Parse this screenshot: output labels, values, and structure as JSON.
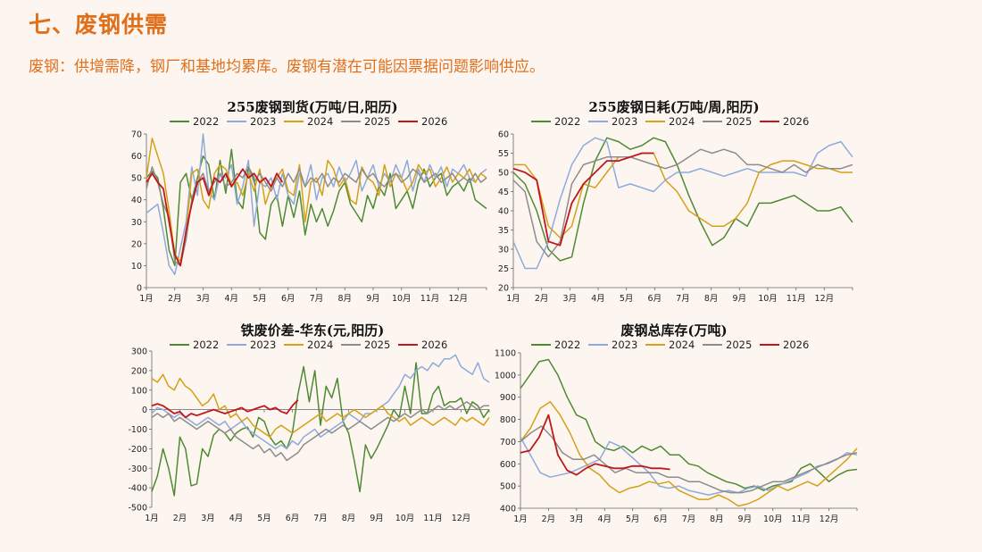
{
  "page": {
    "title": "七、废钢供需",
    "subtitle": "废钢：供增需降，钢厂和基地均累库。废钢有潜在可能因票据问题影响供应。"
  },
  "colors": {
    "accent": "#e06f1c",
    "s2022": "#4e8a33",
    "s2023": "#8eaadb",
    "s2024": "#d4a017",
    "s2025": "#8c8c8c",
    "s2026": "#c0171c"
  },
  "chart_data": [
    {
      "type": "line",
      "title": "255废钢到货(万吨/日,阳历)",
      "x_tick_labels": [
        "1月",
        "2月",
        "3月",
        "4月",
        "5月",
        "6月",
        "7月",
        "8月",
        "9月",
        "10月",
        "11月",
        "12月"
      ],
      "ylim": [
        0,
        70
      ],
      "y_ticks": [
        0,
        10,
        20,
        30,
        40,
        50,
        60,
        70
      ],
      "legend": "top",
      "series": [
        {
          "name": "2022",
          "values": [
            50,
            53,
            50,
            36,
            17,
            10,
            48,
            52,
            40,
            50,
            60,
            56,
            40,
            58,
            43,
            63,
            40,
            36,
            55,
            50,
            25,
            22,
            38,
            42,
            28,
            42,
            32,
            44,
            24,
            38,
            30,
            36,
            28,
            35,
            44,
            48,
            38,
            34,
            30,
            42,
            36,
            46,
            42,
            52,
            36,
            40,
            44,
            36,
            48,
            54,
            46,
            50,
            52,
            42,
            46,
            48,
            44,
            50,
            40,
            38,
            36
          ]
        },
        {
          "name": "2023",
          "values": [
            34,
            36,
            38,
            25,
            10,
            6,
            18,
            30,
            55,
            42,
            70,
            44,
            40,
            52,
            50,
            56,
            38,
            46,
            58,
            28,
            48,
            46,
            50,
            40,
            52,
            42,
            38,
            52,
            46,
            56,
            40,
            50,
            52,
            46,
            55,
            48,
            52,
            58,
            44,
            50,
            56,
            46,
            52,
            48,
            56,
            50,
            58,
            44,
            54,
            48,
            56,
            50,
            55,
            46,
            54,
            52,
            56,
            50,
            48,
            52,
            54
          ]
        },
        {
          "name": "2024",
          "values": [
            50,
            68,
            60,
            52,
            35,
            15,
            12,
            25,
            52,
            54,
            40,
            36,
            52,
            56,
            54,
            47,
            48,
            42,
            52,
            44,
            54,
            38,
            46,
            50,
            54,
            44,
            42,
            56,
            30,
            48,
            50,
            42,
            58,
            54,
            46,
            50,
            40,
            38,
            55,
            50,
            48,
            42,
            56,
            46,
            52,
            50,
            44,
            48,
            56,
            52,
            54,
            46,
            50,
            55,
            48,
            52,
            50,
            54,
            48,
            52,
            50
          ]
        },
        {
          "name": "2025",
          "values": [
            45,
            55,
            48,
            38,
            32,
            12,
            10,
            22,
            40,
            48,
            52,
            44,
            48,
            52,
            46,
            48,
            52,
            50,
            55,
            48,
            52,
            48,
            44,
            50,
            46,
            52,
            48,
            54,
            46,
            50,
            48,
            52,
            46,
            50,
            48,
            52,
            50,
            48,
            54,
            50,
            52,
            48,
            46,
            50,
            52,
            48,
            50,
            54,
            52,
            48,
            50,
            52,
            48,
            50,
            52,
            48,
            50,
            48,
            52,
            48,
            50
          ]
        },
        {
          "name": "2026",
          "values": [
            48,
            52,
            48,
            45,
            30,
            15,
            10,
            26,
            38,
            48,
            50,
            42,
            50,
            48,
            52,
            46,
            50,
            54,
            50,
            52,
            48,
            50,
            46,
            52,
            48
          ]
        }
      ]
    },
    {
      "type": "line",
      "title": "255废钢日耗(万吨/周,阳历)",
      "x_tick_labels": [
        "1月",
        "2月",
        "3月",
        "4月",
        "5月",
        "6月",
        "7月",
        "8月",
        "9月",
        "10月",
        "11月",
        "12月"
      ],
      "ylim": [
        20,
        60
      ],
      "y_ticks": [
        20,
        25,
        30,
        35,
        40,
        45,
        50,
        55,
        60
      ],
      "legend": "top",
      "series": [
        {
          "name": "2022",
          "values": [
            50,
            47,
            40,
            30,
            27,
            28,
            42,
            53,
            59,
            58,
            56,
            57,
            59,
            58,
            52,
            44,
            37,
            31,
            33,
            38,
            36,
            42,
            42,
            43,
            44,
            42,
            40,
            40,
            41,
            37
          ]
        },
        {
          "name": "2023",
          "values": [
            32,
            25,
            25,
            32,
            43,
            52,
            57,
            59,
            58,
            46,
            47,
            46,
            45,
            48,
            50,
            50,
            51,
            50,
            49,
            50,
            51,
            50,
            50,
            50,
            50,
            49,
            55,
            57,
            58,
            54
          ]
        },
        {
          "name": "2024",
          "values": [
            52,
            52,
            48,
            36,
            33,
            36,
            47,
            46,
            50,
            54,
            54,
            55,
            55,
            48,
            45,
            40,
            38,
            36,
            36,
            38,
            42,
            50,
            52,
            53,
            53,
            52,
            51,
            51,
            50,
            50
          ]
        },
        {
          "name": "2025",
          "values": [
            48,
            45,
            32,
            28,
            32,
            47,
            52,
            53,
            54,
            54,
            54,
            53,
            52,
            51,
            52,
            54,
            56,
            55,
            56,
            55,
            52,
            52,
            51,
            50,
            52,
            50,
            52,
            51,
            51,
            52
          ]
        },
        {
          "name": "2026",
          "values": [
            51,
            50,
            48,
            32,
            31,
            42,
            47,
            50,
            53,
            53,
            54,
            55,
            55
          ]
        }
      ]
    },
    {
      "type": "line",
      "title": "铁废价差-华东(元,阳历)",
      "x_tick_labels": [
        "1月",
        "2月",
        "3月",
        "4月",
        "5月",
        "6月",
        "7月",
        "8月",
        "9月",
        "10月",
        "11月",
        "12月"
      ],
      "ylim": [
        -500,
        300
      ],
      "y_ticks": [
        -500,
        -400,
        -300,
        -200,
        -100,
        0,
        100,
        200,
        300
      ],
      "legend": "top",
      "series": [
        {
          "name": "2022",
          "values": [
            -420,
            -340,
            -200,
            -300,
            -440,
            -140,
            -200,
            -390,
            -380,
            -200,
            -240,
            -130,
            -100,
            -120,
            -160,
            -120,
            -100,
            -90,
            -140,
            -40,
            -60,
            -140,
            -180,
            -160,
            -200,
            -120,
            80,
            220,
            40,
            200,
            -80,
            120,
            60,
            160,
            -60,
            -120,
            -260,
            -420,
            -180,
            -250,
            -200,
            -140,
            -80,
            0,
            -40,
            120,
            -20,
            240,
            -20,
            -20,
            80,
            120,
            20,
            40,
            40,
            60,
            -20,
            40,
            20,
            -40,
            0
          ]
        },
        {
          "name": "2023",
          "values": [
            -20,
            10,
            0,
            -20,
            -40,
            -20,
            -40,
            -60,
            -80,
            -60,
            -40,
            -60,
            -80,
            -60,
            -100,
            -80,
            -60,
            -100,
            -120,
            -140,
            -160,
            -180,
            -200,
            -180,
            -200,
            -160,
            -180,
            -140,
            -120,
            -100,
            -140,
            -120,
            -100,
            -80,
            -60,
            -20,
            -40,
            -60,
            -20,
            -20,
            0,
            20,
            40,
            80,
            120,
            180,
            160,
            200,
            220,
            200,
            240,
            220,
            260,
            260,
            280,
            220,
            200,
            180,
            240,
            160,
            140
          ]
        },
        {
          "name": "2024",
          "values": [
            160,
            140,
            180,
            120,
            100,
            160,
            120,
            100,
            60,
            20,
            40,
            80,
            0,
            20,
            -40,
            -20,
            -60,
            -40,
            -80,
            -100,
            -120,
            -140,
            -100,
            -80,
            -100,
            -120,
            -100,
            -80,
            -60,
            -40,
            -20,
            -60,
            -40,
            -20,
            -40,
            -20,
            0,
            -20,
            -40,
            -20,
            0,
            20,
            -20,
            -40,
            -60,
            -40,
            -80,
            -60,
            -40,
            -60,
            -80,
            -60,
            -40,
            -60,
            -80,
            -40,
            -60,
            -40,
            -60,
            -80,
            -40
          ]
        },
        {
          "name": "2025",
          "values": [
            -40,
            -20,
            -40,
            -20,
            -60,
            -40,
            -60,
            -80,
            -100,
            -80,
            -60,
            -80,
            -100,
            -120,
            -100,
            -140,
            -160,
            -180,
            -200,
            -180,
            -220,
            -200,
            -240,
            -220,
            -260,
            -240,
            -220,
            -180,
            -160,
            -140,
            -120,
            -100,
            -120,
            -100,
            -80,
            -100,
            -80,
            -60,
            -80,
            -100,
            -80,
            -60,
            -40,
            -60,
            -40,
            -20,
            -40,
            -20,
            0,
            -20,
            0,
            20,
            0,
            20,
            0,
            20,
            40,
            20,
            0,
            20,
            20
          ]
        },
        {
          "name": "2026",
          "values": [
            20,
            30,
            20,
            0,
            -20,
            -10,
            -40,
            -20,
            -30,
            -20,
            -10,
            0,
            -10,
            -20,
            -10,
            0,
            10,
            -10,
            0,
            10,
            20,
            0,
            10,
            -10,
            -20,
            20,
            50
          ]
        }
      ]
    },
    {
      "type": "line",
      "title": "废钢总库存(万吨)",
      "x_tick_labels": [
        "1月",
        "2月",
        "3月",
        "4月",
        "5月",
        "6月",
        "7月",
        "8月",
        "9月",
        "10月",
        "11月",
        "12月"
      ],
      "ylim": [
        400,
        1100
      ],
      "y_ticks": [
        400,
        500,
        600,
        700,
        800,
        900,
        1000,
        1100
      ],
      "legend": "top",
      "series": [
        {
          "name": "2022",
          "values": [
            940,
            1000,
            1060,
            1070,
            1000,
            900,
            820,
            800,
            700,
            670,
            660,
            680,
            650,
            680,
            660,
            680,
            640,
            640,
            600,
            590,
            560,
            540,
            520,
            510,
            490,
            500,
            480,
            500,
            510,
            520,
            580,
            600,
            560,
            520,
            550,
            570,
            575
          ]
        },
        {
          "name": "2023",
          "values": [
            720,
            640,
            560,
            540,
            550,
            560,
            580,
            600,
            620,
            700,
            680,
            640,
            600,
            560,
            500,
            490,
            500,
            480,
            470,
            460,
            470,
            480,
            470,
            490,
            500,
            480,
            500,
            520,
            540,
            560,
            590,
            600,
            620,
            650,
            640
          ]
        },
        {
          "name": "2024",
          "values": [
            700,
            760,
            850,
            880,
            820,
            740,
            640,
            580,
            550,
            500,
            470,
            490,
            500,
            520,
            510,
            520,
            480,
            460,
            440,
            440,
            460,
            440,
            410,
            420,
            440,
            470,
            500,
            480,
            500,
            520,
            500,
            540,
            580,
            620,
            670
          ]
        },
        {
          "name": "2025",
          "values": [
            700,
            740,
            770,
            720,
            650,
            620,
            620,
            640,
            600,
            560,
            580,
            560,
            560,
            560,
            540,
            540,
            520,
            520,
            500,
            480,
            470,
            470,
            480,
            500,
            520,
            520,
            540,
            560,
            580,
            600,
            620,
            640,
            650
          ]
        },
        {
          "name": "2026",
          "values": [
            650,
            660,
            720,
            820,
            640,
            570,
            550,
            580,
            600,
            590,
            580,
            580,
            590,
            590,
            580,
            580,
            575
          ]
        }
      ]
    }
  ]
}
